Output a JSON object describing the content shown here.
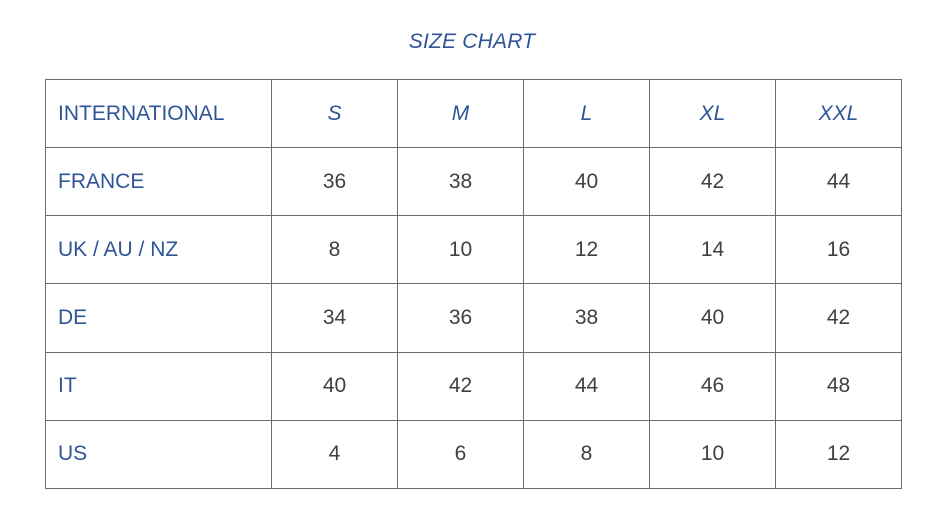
{
  "title": "SIZE CHART",
  "header": {
    "label": "INTERNATIONAL",
    "sizes": [
      "S",
      "M",
      "L",
      "XL",
      "XXL"
    ]
  },
  "rows": [
    {
      "label": "FRANCE",
      "values": [
        "36",
        "38",
        "40",
        "42",
        "44"
      ]
    },
    {
      "label": "UK / AU / NZ",
      "values": [
        "8",
        "10",
        "12",
        "14",
        "16"
      ]
    },
    {
      "label": "DE",
      "values": [
        "34",
        "36",
        "38",
        "40",
        "42"
      ]
    },
    {
      "label": "IT",
      "values": [
        "40",
        "42",
        "44",
        "46",
        "48"
      ]
    },
    {
      "label": "US",
      "values": [
        "4",
        "6",
        "8",
        "10",
        "12"
      ]
    }
  ],
  "colors": {
    "heading_text": "#2f5597",
    "body_text": "#404040",
    "grid_line": "#6d6d6d"
  }
}
